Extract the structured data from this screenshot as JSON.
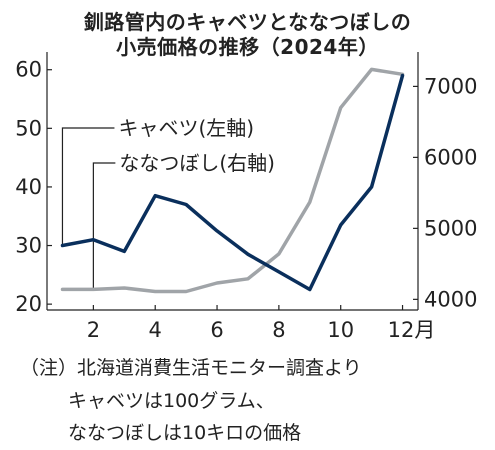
{
  "title": {
    "line1": "釧路管内のキャベツとななつぼしの",
    "line2": "小売価格の推移（2024年）"
  },
  "chart_data": {
    "type": "line",
    "x": [
      1,
      2,
      3,
      4,
      5,
      6,
      7,
      8,
      9,
      10,
      11,
      12
    ],
    "x_ticks": [
      "2",
      "4",
      "6",
      "8",
      "10",
      "12月"
    ],
    "x_tick_values": [
      2,
      4,
      6,
      8,
      10,
      12
    ],
    "left_axis": {
      "ylim": [
        19,
        62
      ],
      "ticks": [
        "20",
        "30",
        "40",
        "50",
        "60"
      ]
    },
    "right_axis": {
      "ylim": [
        3850,
        7400
      ],
      "ticks": [
        "4000",
        "5000",
        "6000",
        "7000"
      ]
    },
    "grid": false,
    "series": [
      {
        "name": "キャベツ(左軸)",
        "axis": "left",
        "color": "#0a2f5c",
        "values": [
          30,
          31,
          29,
          38.5,
          37,
          32.5,
          28.5,
          25.5,
          22.5,
          33.5,
          40,
          59
        ]
      },
      {
        "name": "ななつぼし(右軸)",
        "axis": "right",
        "color": "#a0a4a8",
        "values": [
          4140,
          4140,
          4160,
          4110,
          4110,
          4230,
          4290,
          4640,
          5370,
          6700,
          7240,
          7170
        ]
      }
    ],
    "annotations": [
      "キャベツ(左軸)",
      "ななつぼし(右軸)"
    ]
  },
  "note": {
    "line1": "（注）北海道消費生活モニター調査より",
    "line2": "キャベツは100グラム、",
    "line3": "ななつぼしは10キロの価格"
  }
}
